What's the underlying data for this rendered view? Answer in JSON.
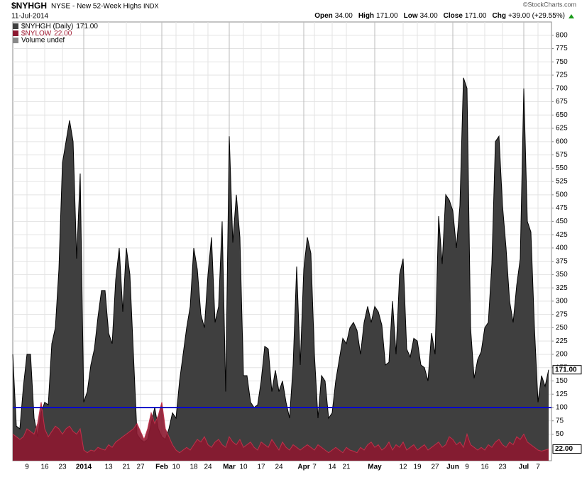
{
  "header": {
    "symbol": "$NYHGH",
    "description": "NYSE - New 52-Week Highs",
    "exchange": "INDX",
    "date": "11-Jul-2014",
    "quote": [
      {
        "label": "Open",
        "value": "34.00"
      },
      {
        "label": "High",
        "value": "171.00"
      },
      {
        "label": "Low",
        "value": "34.00"
      },
      {
        "label": "Close",
        "value": "171.00"
      },
      {
        "label": "Chg",
        "value": "+39.00 (+29.55%)"
      }
    ],
    "credit": "©StockCharts.com",
    "volume_legend": "Volume undef"
  },
  "chart_data": {
    "type": "area",
    "categories": [
      null,
      null,
      null,
      null,
      "9",
      null,
      null,
      null,
      null,
      "16",
      null,
      null,
      null,
      null,
      "23",
      null,
      null,
      null,
      null,
      null,
      "2014",
      null,
      null,
      null,
      null,
      null,
      null,
      "13",
      null,
      null,
      null,
      null,
      "21",
      null,
      null,
      null,
      "27",
      null,
      null,
      null,
      null,
      null,
      "Feb",
      null,
      null,
      null,
      "10",
      null,
      null,
      null,
      null,
      "18",
      null,
      null,
      null,
      "24",
      null,
      null,
      null,
      null,
      null,
      "Mar",
      null,
      null,
      null,
      "10",
      null,
      null,
      null,
      null,
      "17",
      null,
      null,
      null,
      null,
      "24",
      null,
      null,
      null,
      null,
      null,
      null,
      "Apr",
      null,
      null,
      "7",
      null,
      null,
      null,
      null,
      "14",
      null,
      null,
      null,
      "21",
      null,
      null,
      null,
      null,
      null,
      null,
      null,
      "May",
      null,
      null,
      null,
      null,
      null,
      null,
      null,
      "12",
      null,
      null,
      null,
      "19",
      null,
      null,
      null,
      null,
      "27",
      null,
      null,
      null,
      null,
      "Jun",
      null,
      null,
      null,
      "9",
      null,
      null,
      null,
      null,
      "16",
      null,
      null,
      null,
      null,
      "23",
      null,
      null,
      null,
      null,
      null,
      "Jul",
      null,
      null,
      null,
      "7",
      null,
      null,
      null
    ],
    "series": [
      {
        "name": "$NYHGH (Daily)",
        "tag": "171.00",
        "color": "#3f3f3f",
        "values": [
          200,
          65,
          60,
          140,
          200,
          200,
          80,
          45,
          90,
          110,
          105,
          220,
          250,
          360,
          560,
          600,
          640,
          600,
          380,
          540,
          110,
          130,
          180,
          210,
          270,
          320,
          320,
          240,
          220,
          340,
          400,
          280,
          400,
          350,
          200,
          50,
          40,
          35,
          40,
          70,
          100,
          60,
          45,
          40,
          60,
          90,
          80,
          150,
          200,
          250,
          290,
          400,
          360,
          275,
          250,
          350,
          420,
          260,
          290,
          450,
          130,
          610,
          410,
          500,
          420,
          160,
          160,
          110,
          100,
          105,
          150,
          215,
          210,
          130,
          170,
          130,
          150,
          110,
          80,
          180,
          365,
          180,
          360,
          420,
          390,
          200,
          80,
          160,
          150,
          80,
          90,
          150,
          190,
          230,
          220,
          250,
          260,
          245,
          200,
          260,
          290,
          260,
          290,
          280,
          255,
          180,
          185,
          300,
          200,
          350,
          380,
          210,
          195,
          230,
          225,
          180,
          175,
          150,
          240,
          200,
          460,
          370,
          500,
          490,
          470,
          400,
          480,
          720,
          700,
          250,
          155,
          190,
          205,
          250,
          260,
          370,
          600,
          610,
          480,
          400,
          300,
          260,
          330,
          380,
          700,
          450,
          430,
          250,
          110,
          160,
          140,
          171
        ]
      },
      {
        "name": "$NYLOW",
        "tag": "22.00",
        "color": "#8c1830",
        "values": [
          50,
          45,
          40,
          45,
          60,
          55,
          50,
          70,
          110,
          60,
          45,
          55,
          65,
          60,
          50,
          60,
          65,
          55,
          50,
          60,
          20,
          15,
          20,
          18,
          25,
          22,
          20,
          30,
          25,
          35,
          40,
          45,
          50,
          55,
          60,
          70,
          55,
          40,
          60,
          90,
          70,
          85,
          110,
          60,
          45,
          30,
          20,
          15,
          20,
          25,
          20,
          30,
          40,
          35,
          45,
          30,
          25,
          35,
          40,
          30,
          25,
          45,
          35,
          30,
          40,
          25,
          30,
          35,
          25,
          20,
          35,
          30,
          25,
          40,
          30,
          20,
          35,
          25,
          20,
          30,
          25,
          20,
          25,
          30,
          25,
          20,
          30,
          25,
          20,
          15,
          20,
          25,
          20,
          15,
          25,
          20,
          18,
          15,
          25,
          20,
          30,
          35,
          25,
          30,
          20,
          25,
          35,
          20,
          30,
          25,
          35,
          20,
          25,
          30,
          20,
          25,
          30,
          20,
          25,
          30,
          35,
          25,
          30,
          45,
          40,
          30,
          35,
          25,
          50,
          30,
          25,
          20,
          25,
          20,
          30,
          25,
          35,
          40,
          30,
          25,
          35,
          30,
          45,
          40,
          50,
          35,
          30,
          25,
          20,
          18,
          20,
          22
        ]
      }
    ],
    "hline": 100,
    "hline_color": "#0000cc",
    "ylim": [
      0,
      825
    ],
    "yticks": [
      50,
      75,
      100,
      125,
      150,
      175,
      200,
      225,
      250,
      275,
      300,
      325,
      350,
      375,
      400,
      425,
      450,
      475,
      500,
      525,
      550,
      575,
      600,
      625,
      650,
      675,
      700,
      725,
      750,
      775,
      800
    ],
    "grid": true
  }
}
